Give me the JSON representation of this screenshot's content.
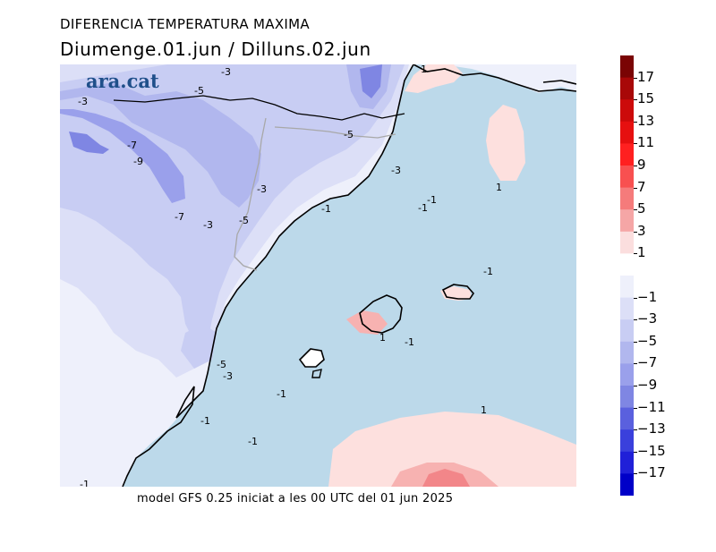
{
  "header": {
    "title": "DIFERENCIA TEMPERATURA MAXIMA",
    "subtitle": "Diumenge.01.jun  /  Dilluns.02.jun"
  },
  "logo": {
    "text": "ara.cat"
  },
  "footer": {
    "text": "model GFS 0.25 iniciat a les 00 UTC del 01 jun 2025"
  },
  "colors": {
    "sea": "#bcd9ea",
    "land_neutral": "#eef0fb",
    "cold_1": "#dcdff7",
    "cold_3": "#c8cdf3",
    "cold_5": "#b1b7ee",
    "cold_7": "#9aa0eb",
    "cold_9": "#7f86e3",
    "warm_1": "#fde0de",
    "warm_3": "#f7b2b1",
    "warm_5": "#f28689",
    "coast": "#000000",
    "border": "#a8a8a8"
  },
  "colorbar": {
    "segments": [
      {
        "color": "#7a0404"
      },
      {
        "color": "#a80808"
      },
      {
        "color": "#cc0a0a"
      },
      {
        "color": "#e61010"
      },
      {
        "color": "#ff2020"
      },
      {
        "color": "#f85050"
      },
      {
        "color": "#f57b7b"
      },
      {
        "color": "#f5a6a6"
      },
      {
        "color": "#fbdede"
      },
      {
        "color": "#ffffff"
      },
      {
        "color": "#eef0fb"
      },
      {
        "color": "#dcdff7"
      },
      {
        "color": "#c8cdf3"
      },
      {
        "color": "#b1b7ee"
      },
      {
        "color": "#9aa0eb"
      },
      {
        "color": "#7f86e3"
      },
      {
        "color": "#5a60de"
      },
      {
        "color": "#3a40dc"
      },
      {
        "color": "#2020d8"
      },
      {
        "color": "#0000c8"
      }
    ],
    "labels": [
      "17",
      "15",
      "13",
      "11",
      "9",
      "7",
      "5",
      "3",
      "1",
      "−1",
      "−3",
      "−5",
      "−7",
      "−9",
      "−11",
      "−13",
      "−15",
      "−17"
    ]
  },
  "map_labels": [
    {
      "text": "-3"
    },
    {
      "text": "-5"
    },
    {
      "text": "-3"
    },
    {
      "text": "-7"
    },
    {
      "text": "-9"
    },
    {
      "text": "-7"
    },
    {
      "text": "-3"
    },
    {
      "text": "-5"
    },
    {
      "text": "-3"
    },
    {
      "text": "-5"
    },
    {
      "text": "-3"
    },
    {
      "text": "-1"
    },
    {
      "text": "-1"
    },
    {
      "text": "-1"
    },
    {
      "text": "1"
    },
    {
      "text": "1"
    },
    {
      "text": "-1"
    },
    {
      "text": "1"
    },
    {
      "text": "-1"
    },
    {
      "text": "-5"
    },
    {
      "text": "-3"
    },
    {
      "text": "-1"
    },
    {
      "text": "-1"
    },
    {
      "text": "-1"
    },
    {
      "text": "1"
    },
    {
      "text": "-1"
    }
  ]
}
